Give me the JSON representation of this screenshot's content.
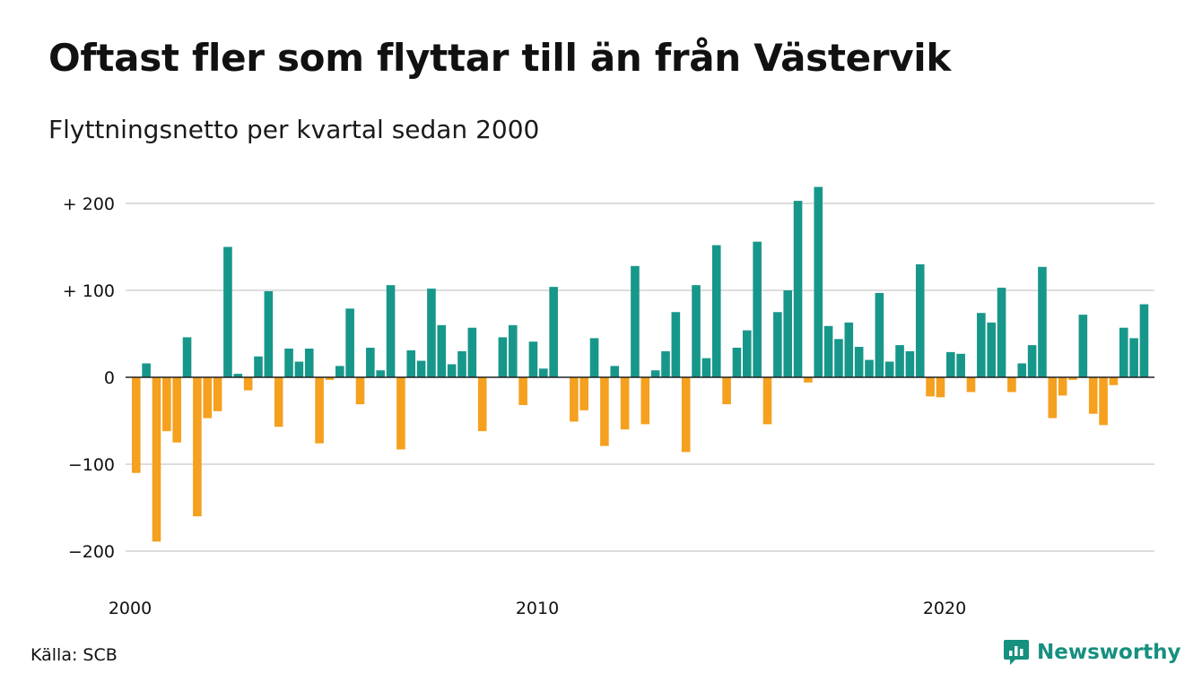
{
  "title": "Oftast fler som flyttar till än från Västervik",
  "subtitle": "Flyttningsnetto per kvartal sedan 2000",
  "source": "Källa: SCB",
  "brand": {
    "name": "Newsworthy",
    "icon": "newsworthy-logo-icon",
    "color": "#16907f"
  },
  "colors": {
    "positive": "#17978a",
    "negative": "#f5a01f",
    "grid": "#dddddd",
    "zero_line": "#222222"
  },
  "chart_data": {
    "type": "bar",
    "title": "Oftast fler som flyttar till än från Västervik",
    "subtitle": "Flyttningsnetto per kvartal sedan 2000",
    "xlabel": "",
    "ylabel": "",
    "ylim": [
      -210,
      225
    ],
    "yticks": [
      {
        "value": 200,
        "label": "+ 200"
      },
      {
        "value": 100,
        "label": "+ 100"
      },
      {
        "value": 0,
        "label": "0"
      },
      {
        "value": -100,
        "label": "−100"
      },
      {
        "value": -200,
        "label": "−200"
      }
    ],
    "xticks": [
      {
        "year": 2000,
        "label": "2000"
      },
      {
        "year": 2010,
        "label": "2010"
      },
      {
        "year": 2020,
        "label": "2020"
      }
    ],
    "grid": true,
    "start": "2000 Q1",
    "frequency": "quarterly",
    "values": [
      -110,
      16,
      -189,
      -62,
      -75,
      46,
      -160,
      -47,
      -39,
      150,
      4,
      -15,
      24,
      99,
      -57,
      33,
      18,
      33,
      -76,
      -3,
      13,
      79,
      -31,
      34,
      8,
      106,
      -83,
      31,
      19,
      102,
      60,
      15,
      30,
      57,
      -62,
      0,
      46,
      60,
      -32,
      41,
      10,
      104,
      0,
      -51,
      -38,
      45,
      -79,
      13,
      -60,
      128,
      -54,
      8,
      30,
      75,
      -86,
      106,
      22,
      152,
      -31,
      34,
      54,
      156,
      -54,
      75,
      100,
      203,
      -6,
      219,
      59,
      44,
      63,
      35,
      20,
      97,
      18,
      37,
      30,
      130,
      -22,
      -23,
      29,
      27,
      -17,
      74,
      63,
      103,
      -17,
      16,
      37,
      127,
      -47,
      -21,
      -3,
      72,
      -42,
      -55,
      -9,
      57,
      45,
      84
    ]
  }
}
